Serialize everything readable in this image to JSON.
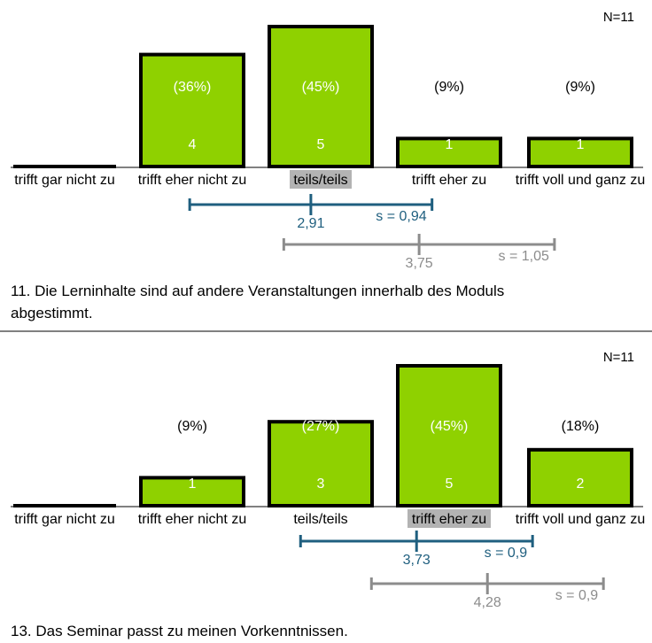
{
  "colors": {
    "bar_fill": "#8fd100",
    "bar_stroke": "#000000",
    "mean_current": "#1f5f7f",
    "mean_reference": "#8c8c8c",
    "highlight": "#b3b3b3"
  },
  "chart_data": [
    {
      "type": "bar",
      "n_label": "N=11",
      "categories": [
        "trifft gar nicht zu",
        "trifft eher nicht zu",
        "teils/teils",
        "trifft eher zu",
        "trifft voll und ganz zu"
      ],
      "values": [
        0,
        4,
        5,
        1,
        1
      ],
      "percent_labels": [
        "",
        "(36%)",
        "(45%)",
        "(9%)",
        "(9%)"
      ],
      "count_labels": [
        "",
        "4",
        "5",
        "1",
        "1"
      ],
      "highlighted_category": "teils/teils",
      "ylim": [
        0,
        5
      ],
      "scale": [
        1,
        5
      ],
      "stat_current": {
        "mean": 2.91,
        "sd": 0.94,
        "mean_label": "2,91",
        "sd_label": "s = 0,94"
      },
      "stat_reference": {
        "mean": 3.75,
        "sd": 1.05,
        "mean_label": "3,75",
        "sd_label": "s = 1,05"
      }
    },
    {
      "type": "bar",
      "title": "11. Die Lerninhalte sind auf andere Veranstaltungen innerhalb des Moduls abgestimmt.",
      "title_lines": [
        "11. Die Lerninhalte sind auf andere Veranstaltungen innerhalb des Moduls",
        "abgestimmt."
      ],
      "n_label": "N=11",
      "categories": [
        "trifft gar nicht zu",
        "trifft eher nicht zu",
        "teils/teils",
        "trifft eher zu",
        "trifft voll und ganz zu"
      ],
      "values": [
        0,
        1,
        3,
        5,
        2
      ],
      "percent_labels": [
        "",
        "(9%)",
        "(27%)",
        "(45%)",
        "(18%)"
      ],
      "count_labels": [
        "",
        "1",
        "3",
        "5",
        "2"
      ],
      "highlighted_category": "trifft eher zu",
      "ylim": [
        0,
        5
      ],
      "scale": [
        1,
        5
      ],
      "stat_current": {
        "mean": 3.73,
        "sd": 0.9,
        "mean_label": "3,73",
        "sd_label": "s = 0,9"
      },
      "stat_reference": {
        "mean": 4.28,
        "sd": 0.9,
        "mean_label": "4,28",
        "sd_label": "s = 0,9"
      }
    }
  ],
  "footer_title": "13. Das Seminar passt zu meinen Vorkenntnissen."
}
